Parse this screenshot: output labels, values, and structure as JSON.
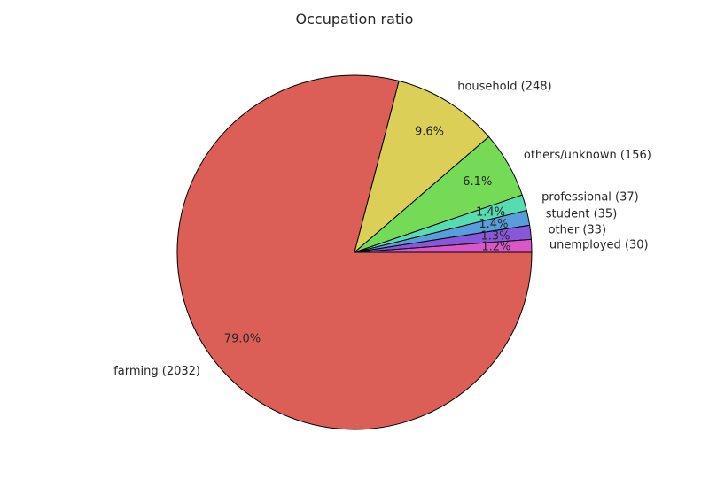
{
  "chart_data": {
    "type": "pie",
    "title": "Occupation ratio",
    "start_angle_deg": 0,
    "direction": "clockwise",
    "slices": [
      {
        "label": "farming (2032)",
        "value": 2032,
        "percent_label": "79.0%",
        "color": "#db5f57"
      },
      {
        "label": "household (248)",
        "value": 248,
        "percent_label": "9.6%",
        "color": "#dbcf57"
      },
      {
        "label": "others/unknown (156)",
        "value": 156,
        "percent_label": "6.1%",
        "color": "#75db57"
      },
      {
        "label": "professional (37)",
        "value": 37,
        "percent_label": "1.4%",
        "color": "#57dbb0"
      },
      {
        "label": "student (35)",
        "value": 35,
        "percent_label": "1.4%",
        "color": "#579edb"
      },
      {
        "label": "other (33)",
        "value": 33,
        "percent_label": "1.3%",
        "color": "#8a57db"
      },
      {
        "label": "unemployed (30)",
        "value": 30,
        "percent_label": "1.2%",
        "color": "#db57c7"
      }
    ],
    "edge_color": "#000000"
  }
}
